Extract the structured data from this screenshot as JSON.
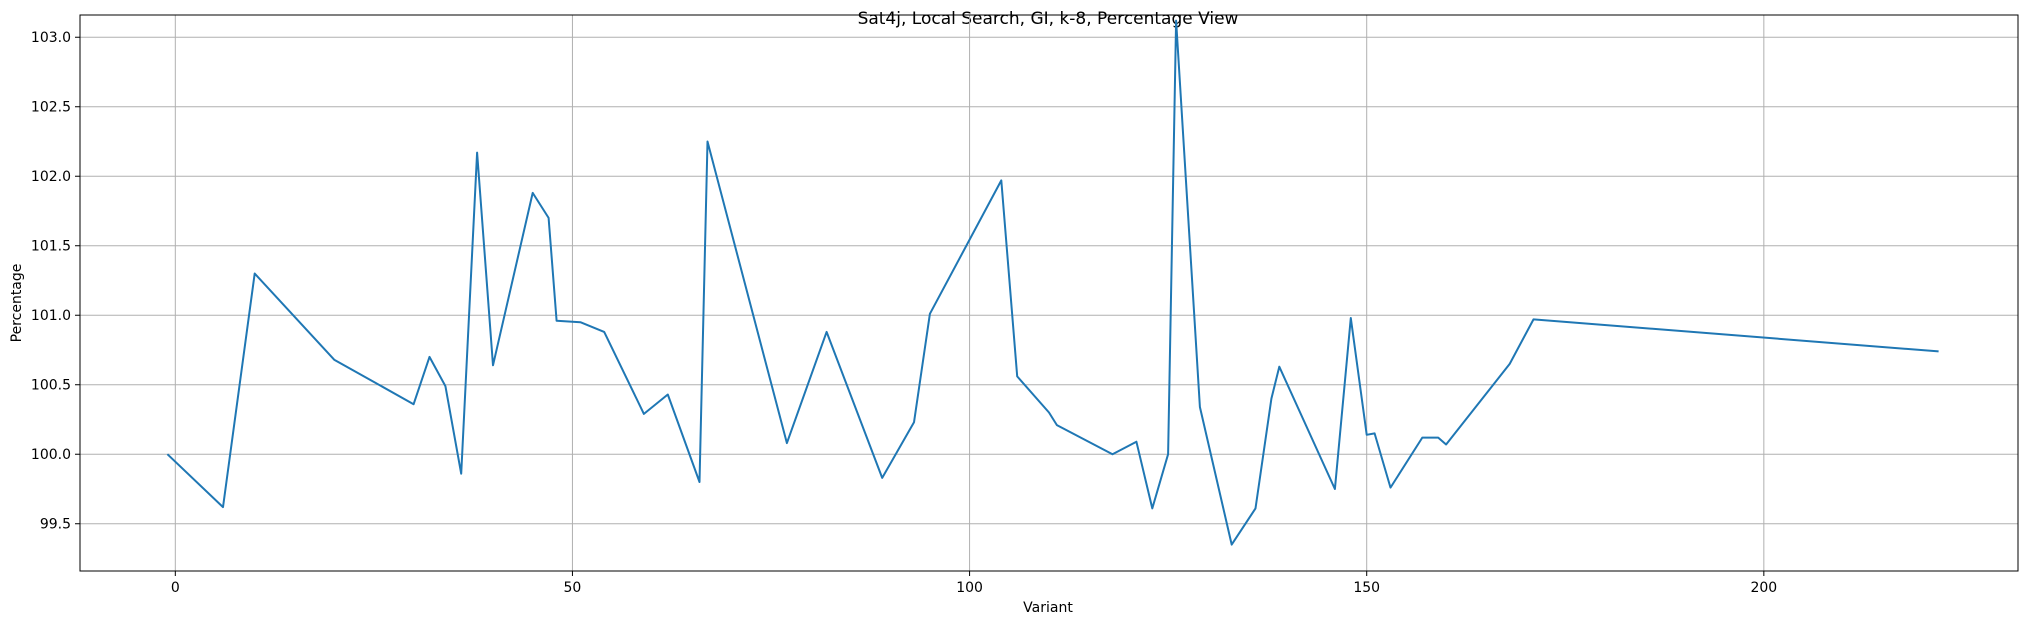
{
  "chart_data": {
    "type": "line",
    "title": "Sat4j, Local Search, GI, k-8, Percentage View",
    "xlabel": "Variant",
    "ylabel": "Percentage",
    "xlim": [
      -12,
      232
    ],
    "ylim": [
      99.16,
      103.16
    ],
    "xticks": [
      0,
      50,
      100,
      150,
      200
    ],
    "xtick_labels": [
      "0",
      "50",
      "100",
      "150",
      "200"
    ],
    "yticks": [
      99.5,
      100.0,
      100.5,
      101.0,
      101.5,
      102.0,
      102.5,
      103.0
    ],
    "ytick_labels": [
      "99.5",
      "100.0",
      "100.5",
      "101.0",
      "101.5",
      "102.0",
      "102.5",
      "103.0"
    ],
    "grid": true,
    "line_color": "#1f77b4",
    "series": [
      {
        "x": [
          -1,
          6,
          10,
          20,
          30,
          32,
          34,
          36,
          38,
          40,
          45,
          47,
          48,
          51,
          54,
          59,
          62,
          66,
          67,
          77,
          82,
          89,
          93,
          95,
          104,
          106,
          110,
          111,
          118,
          121,
          123,
          125,
          126,
          129,
          133,
          136,
          138,
          139,
          146,
          148,
          150,
          151,
          153,
          157,
          159,
          160,
          168,
          171,
          222
        ],
        "y": [
          100.0,
          99.62,
          101.3,
          100.68,
          100.36,
          100.7,
          100.49,
          99.86,
          102.17,
          100.64,
          101.88,
          101.7,
          100.96,
          100.95,
          100.88,
          100.29,
          100.43,
          99.8,
          102.25,
          100.08,
          100.88,
          99.83,
          100.23,
          101.01,
          101.97,
          100.56,
          100.3,
          100.21,
          100.0,
          100.09,
          99.61,
          100.0,
          103.12,
          100.34,
          99.35,
          99.61,
          100.4,
          100.63,
          99.75,
          100.98,
          100.14,
          100.15,
          99.76,
          100.12,
          100.12,
          100.07,
          100.65,
          100.97,
          100.74
        ]
      }
    ]
  }
}
